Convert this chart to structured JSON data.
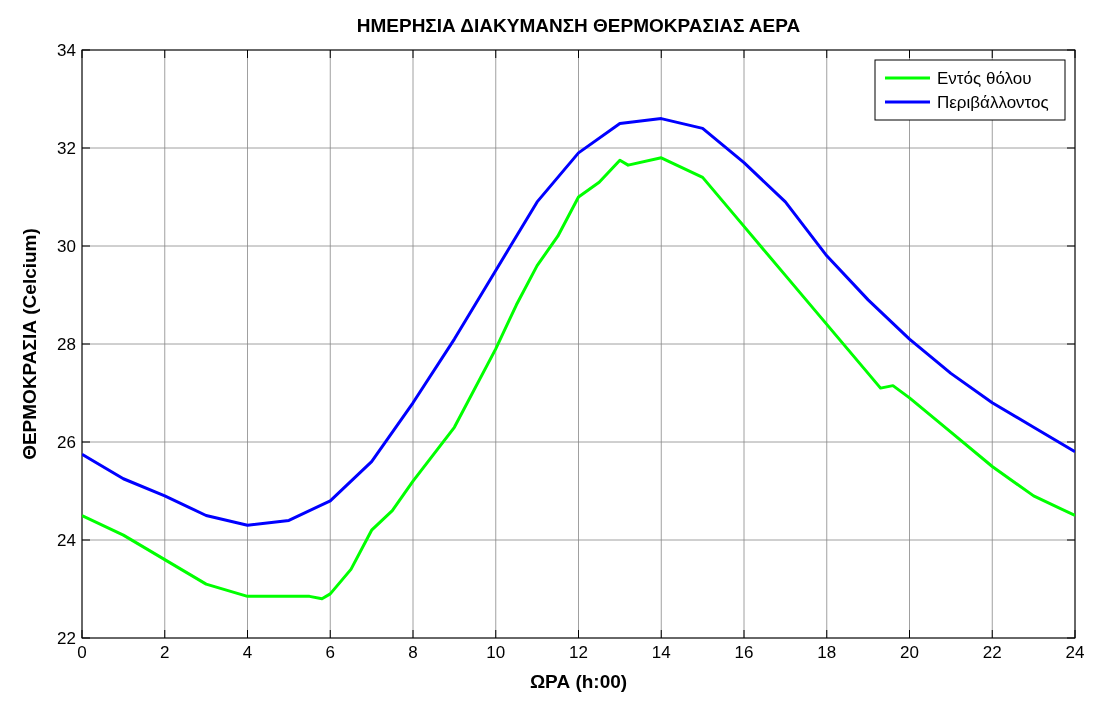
{
  "chart_data": {
    "type": "line",
    "title": "ΗΜΕΡΗΣΙΑ ΔΙΑΚΥΜΑΝΣΗ ΘΕΡΜΟΚΡΑΣΙΑΣ ΑΕΡΑ",
    "xlabel": "ΩΡΑ (h:00)",
    "ylabel": "ΘΕΡΜΟΚΡΑΣΙΑ (Celcium)",
    "xlim": [
      0,
      24
    ],
    "xticks": [
      0,
      2,
      4,
      6,
      8,
      10,
      12,
      14,
      16,
      18,
      20,
      22,
      24
    ],
    "ylim": [
      22,
      34
    ],
    "yticks": [
      22,
      24,
      26,
      28,
      30,
      32,
      34
    ],
    "grid": true,
    "legend": "top right",
    "series": [
      {
        "name": "Εντός θόλου",
        "color": "#00ff00",
        "x": [
          0,
          1,
          2,
          3,
          4,
          5,
          5.5,
          5.8,
          6,
          6.5,
          7,
          7.5,
          8,
          9,
          10,
          10.5,
          11,
          11.5,
          12,
          12.5,
          13,
          13.2,
          14,
          15,
          16,
          17,
          18,
          19,
          19.3,
          19.6,
          20,
          21,
          22,
          23,
          24
        ],
        "values": [
          24.5,
          24.1,
          23.6,
          23.1,
          22.85,
          22.85,
          22.85,
          22.8,
          22.9,
          23.4,
          24.2,
          24.6,
          25.2,
          26.3,
          27.9,
          28.8,
          29.6,
          30.2,
          31.0,
          31.3,
          31.75,
          31.65,
          31.8,
          31.4,
          30.4,
          29.4,
          28.4,
          27.4,
          27.1,
          27.15,
          26.9,
          26.2,
          25.5,
          24.9,
          24.5
        ]
      },
      {
        "name": "Περιβάλλοντος",
        "color": "#0000ff",
        "x": [
          0,
          1,
          2,
          3,
          4,
          5,
          6,
          7,
          8,
          9,
          10,
          11,
          12,
          13,
          14,
          15,
          16,
          17,
          18,
          19,
          20,
          21,
          22,
          23,
          24
        ],
        "values": [
          25.75,
          25.25,
          24.9,
          24.5,
          24.3,
          24.4,
          24.8,
          25.6,
          26.8,
          28.1,
          29.5,
          30.9,
          31.9,
          32.5,
          32.6,
          32.4,
          31.7,
          30.9,
          29.8,
          28.9,
          28.1,
          27.4,
          26.8,
          26.3,
          25.8
        ]
      }
    ]
  }
}
